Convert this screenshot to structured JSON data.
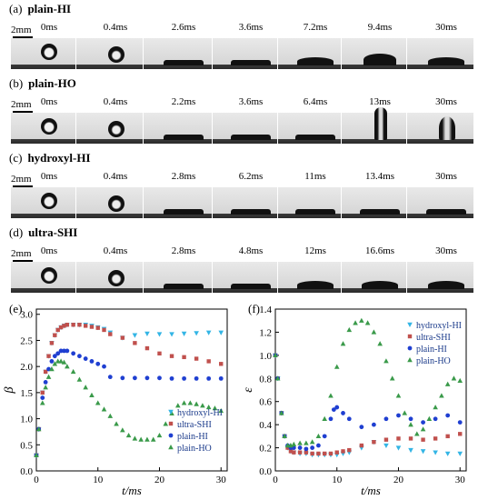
{
  "rows": [
    {
      "tag": "(a)",
      "title": "plain-HI",
      "scale": "2mm",
      "times": [
        "0ms",
        "0.4ms",
        "2.6ms",
        "3.6ms",
        "7.2ms",
        "9.4ms",
        "30ms"
      ],
      "shapes": [
        "sphere",
        "ring",
        "flat",
        "flat",
        "cap",
        "peak",
        "cap"
      ]
    },
    {
      "tag": "(b)",
      "title": "plain-HO",
      "scale": "2mm",
      "times": [
        "0ms",
        "0.4ms",
        "2.2ms",
        "3.6ms",
        "6.4ms",
        "13ms",
        "30ms"
      ],
      "shapes": [
        "sphere",
        "ring",
        "flat",
        "flat",
        "flat",
        "column",
        "tall"
      ]
    },
    {
      "tag": "(c)",
      "title": "hydroxyl-HI",
      "scale": "2mm",
      "times": [
        "0ms",
        "0.4ms",
        "2.8ms",
        "6.2ms",
        "11ms",
        "13.4ms",
        "30ms"
      ],
      "shapes": [
        "sphere",
        "ring",
        "flat",
        "flat",
        "flat",
        "flat",
        "flat"
      ]
    },
    {
      "tag": "(d)",
      "title": "ultra-SHI",
      "scale": "2mm",
      "times": [
        "0ms",
        "0.4ms",
        "2.8ms",
        "4.8ms",
        "12ms",
        "16.6ms",
        "30ms"
      ],
      "shapes": [
        "sphere",
        "ring",
        "flat",
        "flat",
        "cap",
        "cap",
        "cap"
      ]
    }
  ],
  "chart_data": [
    {
      "type": "scatter",
      "panel": "(e)",
      "xlabel": "t/ms",
      "ylabel": "β",
      "xlim": [
        0,
        31
      ],
      "ylim": [
        0,
        3.1
      ],
      "xticks": [
        0,
        10,
        20,
        30
      ],
      "yticks": [
        0.0,
        0.5,
        1.0,
        1.5,
        2.0,
        2.5,
        3.0
      ],
      "legend_position": "bottom-right",
      "series": [
        {
          "name": "hydroxyl-HI",
          "color": "#33b5e5",
          "marker": "triangle-down",
          "x": [
            0,
            0.4,
            1,
            1.5,
            2,
            2.5,
            3,
            3.5,
            4,
            4.5,
            5,
            6,
            7,
            8,
            9,
            10,
            11,
            12,
            14,
            16,
            18,
            20,
            22,
            24,
            26,
            28,
            30
          ],
          "y": [
            0.3,
            0.8,
            1.5,
            1.9,
            2.2,
            2.45,
            2.6,
            2.7,
            2.75,
            2.78,
            2.8,
            2.8,
            2.8,
            2.8,
            2.78,
            2.75,
            2.72,
            2.65,
            2.55,
            2.6,
            2.63,
            2.62,
            2.62,
            2.63,
            2.64,
            2.65,
            2.65
          ]
        },
        {
          "name": "ultra-SHI",
          "color": "#c0504d",
          "marker": "square",
          "x": [
            0,
            0.4,
            1,
            1.5,
            2,
            2.5,
            3,
            3.5,
            4,
            4.5,
            5,
            6,
            7,
            8,
            9,
            10,
            11,
            12,
            14,
            16,
            18,
            20,
            22,
            24,
            26,
            28,
            30
          ],
          "y": [
            0.3,
            0.8,
            1.5,
            1.9,
            2.2,
            2.45,
            2.6,
            2.7,
            2.75,
            2.78,
            2.8,
            2.8,
            2.8,
            2.78,
            2.76,
            2.74,
            2.7,
            2.62,
            2.55,
            2.45,
            2.35,
            2.25,
            2.2,
            2.18,
            2.15,
            2.1,
            2.05
          ]
        },
        {
          "name": "plain-HI",
          "color": "#1f3fd1",
          "marker": "circle",
          "x": [
            0,
            0.4,
            1,
            1.5,
            2,
            2.5,
            3,
            3.5,
            4,
            4.5,
            5,
            6,
            7,
            8,
            9,
            10,
            11,
            12,
            14,
            16,
            18,
            20,
            22,
            24,
            26,
            28,
            30
          ],
          "y": [
            0.3,
            0.8,
            1.4,
            1.7,
            1.95,
            2.1,
            2.2,
            2.25,
            2.3,
            2.3,
            2.3,
            2.25,
            2.2,
            2.15,
            2.1,
            2.05,
            2.0,
            1.8,
            1.78,
            1.78,
            1.78,
            1.78,
            1.77,
            1.77,
            1.77,
            1.77,
            1.77
          ]
        },
        {
          "name": "plain-HO",
          "color": "#3a9a4a",
          "marker": "triangle-up",
          "x": [
            0,
            0.4,
            1,
            1.5,
            2,
            2.5,
            3,
            3.5,
            4,
            4.5,
            5,
            6,
            7,
            8,
            9,
            10,
            11,
            12,
            13,
            14,
            15,
            16,
            17,
            18,
            19,
            20,
            21,
            22,
            23,
            24,
            25,
            26,
            27,
            28,
            29,
            30
          ],
          "y": [
            0.3,
            0.8,
            1.3,
            1.6,
            1.8,
            1.95,
            2.05,
            2.1,
            2.1,
            2.08,
            2.0,
            1.9,
            1.75,
            1.6,
            1.45,
            1.3,
            1.18,
            1.05,
            0.9,
            0.78,
            0.68,
            0.62,
            0.6,
            0.6,
            0.6,
            0.68,
            0.9,
            1.1,
            1.25,
            1.3,
            1.3,
            1.28,
            1.25,
            1.22,
            1.2,
            1.15
          ]
        }
      ]
    },
    {
      "type": "scatter",
      "panel": "(f)",
      "xlabel": "t/ms",
      "ylabel": "ε",
      "xlim": [
        0,
        31
      ],
      "ylim": [
        0,
        1.4
      ],
      "xticks": [
        0,
        10,
        20,
        30
      ],
      "yticks": [
        0.0,
        0.2,
        0.4,
        0.6,
        0.8,
        1.0,
        1.2,
        1.4
      ],
      "legend_position": "top-right",
      "series": [
        {
          "name": "hydroxyl-HI",
          "color": "#33b5e5",
          "marker": "triangle-down",
          "x": [
            0,
            0.4,
            1,
            1.5,
            2,
            2.5,
            3,
            4,
            5,
            6,
            7,
            8,
            9,
            10,
            11,
            12,
            14,
            16,
            18,
            20,
            22,
            24,
            26,
            28,
            30
          ],
          "y": [
            1.0,
            0.8,
            0.5,
            0.3,
            0.2,
            0.17,
            0.16,
            0.15,
            0.15,
            0.14,
            0.14,
            0.14,
            0.14,
            0.14,
            0.15,
            0.16,
            0.2,
            0.25,
            0.22,
            0.2,
            0.18,
            0.17,
            0.16,
            0.15,
            0.15
          ]
        },
        {
          "name": "ultra-SHI",
          "color": "#c0504d",
          "marker": "square",
          "x": [
            0,
            0.4,
            1,
            1.5,
            2,
            2.5,
            3,
            4,
            5,
            6,
            7,
            8,
            9,
            10,
            11,
            12,
            14,
            16,
            18,
            20,
            22,
            24,
            26,
            28,
            30
          ],
          "y": [
            1.0,
            0.8,
            0.5,
            0.3,
            0.2,
            0.17,
            0.16,
            0.16,
            0.16,
            0.15,
            0.15,
            0.15,
            0.15,
            0.16,
            0.17,
            0.18,
            0.22,
            0.25,
            0.27,
            0.28,
            0.28,
            0.27,
            0.28,
            0.3,
            0.32
          ]
        },
        {
          "name": "plain-HI",
          "color": "#1f3fd1",
          "marker": "circle",
          "x": [
            0,
            0.4,
            1,
            1.5,
            2,
            2.5,
            3,
            4,
            5,
            6,
            7,
            8,
            9,
            9.5,
            10,
            11,
            12,
            14,
            16,
            18,
            20,
            22,
            24,
            26,
            28,
            30
          ],
          "y": [
            1.0,
            0.8,
            0.5,
            0.3,
            0.22,
            0.2,
            0.2,
            0.2,
            0.19,
            0.2,
            0.22,
            0.3,
            0.45,
            0.53,
            0.55,
            0.5,
            0.45,
            0.38,
            0.4,
            0.45,
            0.48,
            0.45,
            0.42,
            0.45,
            0.48,
            0.42
          ]
        },
        {
          "name": "plain-HO",
          "color": "#3a9a4a",
          "marker": "triangle-up",
          "x": [
            0,
            0.4,
            1,
            1.5,
            2,
            2.5,
            3,
            4,
            5,
            6,
            7,
            8,
            9,
            10,
            11,
            12,
            13,
            14,
            15,
            16,
            17,
            18,
            19,
            20,
            21,
            22,
            23,
            24,
            25,
            26,
            27,
            28,
            29,
            30
          ],
          "y": [
            1.0,
            0.8,
            0.5,
            0.3,
            0.22,
            0.22,
            0.23,
            0.24,
            0.24,
            0.25,
            0.3,
            0.45,
            0.65,
            0.9,
            1.1,
            1.22,
            1.28,
            1.3,
            1.28,
            1.2,
            1.1,
            0.95,
            0.8,
            0.65,
            0.5,
            0.4,
            0.32,
            0.36,
            0.45,
            0.55,
            0.65,
            0.75,
            0.8,
            0.78
          ]
        }
      ]
    }
  ]
}
